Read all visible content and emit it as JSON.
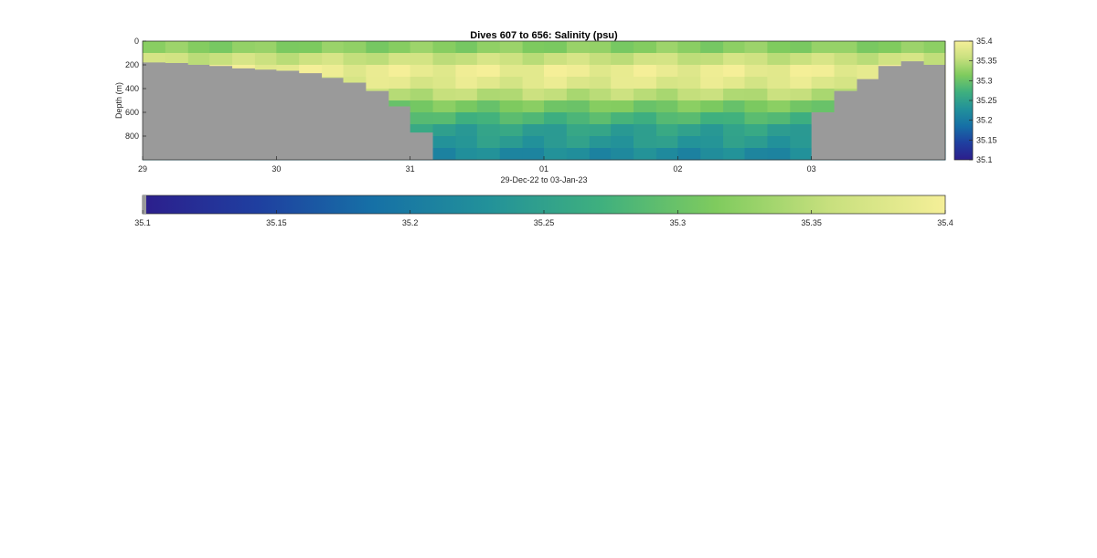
{
  "chart_data": {
    "type": "heatmap",
    "title": "Dives 607 to 656: Salinity (psu)",
    "xlabel": "29-Dec-22 to 03-Jan-23",
    "ylabel": "Depth (m)",
    "x_ticks": [
      "29",
      "30",
      "31",
      "01",
      "02",
      "03"
    ],
    "x_tick_values": [
      0,
      1,
      2,
      3,
      4,
      5
    ],
    "xlim": [
      0,
      6
    ],
    "ylim": [
      0,
      1000
    ],
    "y_reversed": true,
    "y_ticks": [
      0,
      200,
      400,
      600,
      800
    ],
    "y_tick_labels": [
      "0",
      "200",
      "400",
      "600",
      "800"
    ],
    "clim": [
      35.1,
      35.4
    ],
    "colorbar_ticks": [
      "35.1",
      "35.15",
      "35.2",
      "35.25",
      "35.3",
      "35.35",
      "35.4"
    ],
    "colorbar_tick_values": [
      35.1,
      35.15,
      35.2,
      35.25,
      35.3,
      35.35,
      35.4
    ],
    "colormap": "parula-like",
    "colormap_stops": [
      "#2c1e8c",
      "#1f3fa0",
      "#1670a6",
      "#22919a",
      "#3fb07e",
      "#7fcb5e",
      "#c8e07e",
      "#f5ef98"
    ],
    "nodata_color": "#9a9a9a",
    "grid": false,
    "profile_times": [
      0.0,
      0.17,
      0.34,
      0.5,
      0.67,
      0.84,
      1.0,
      1.17,
      1.34,
      1.5,
      1.67,
      1.84,
      2.0,
      2.17,
      2.34,
      2.5,
      2.67,
      2.84,
      3.0,
      3.17,
      3.34,
      3.5,
      3.67,
      3.84,
      4.0,
      4.17,
      4.34,
      4.5,
      4.67,
      4.84,
      5.0,
      5.17,
      5.34,
      5.5,
      5.67,
      5.84
    ],
    "seafloor_depth_m": [
      180,
      185,
      200,
      210,
      230,
      240,
      250,
      270,
      310,
      350,
      420,
      550,
      770,
      1000,
      1000,
      1000,
      1000,
      1000,
      1000,
      1000,
      1000,
      1000,
      1000,
      1000,
      1000,
      1000,
      1000,
      1000,
      1000,
      1000,
      600,
      420,
      320,
      210,
      170,
      200
    ],
    "depth_levels_m": [
      0,
      100,
      200,
      300,
      400,
      500,
      600,
      700,
      800,
      900
    ],
    "salinity_profile_psu": [
      35.32,
      35.36,
      35.39,
      35.38,
      35.35,
      35.31,
      35.28,
      35.25,
      35.24,
      35.22
    ]
  }
}
